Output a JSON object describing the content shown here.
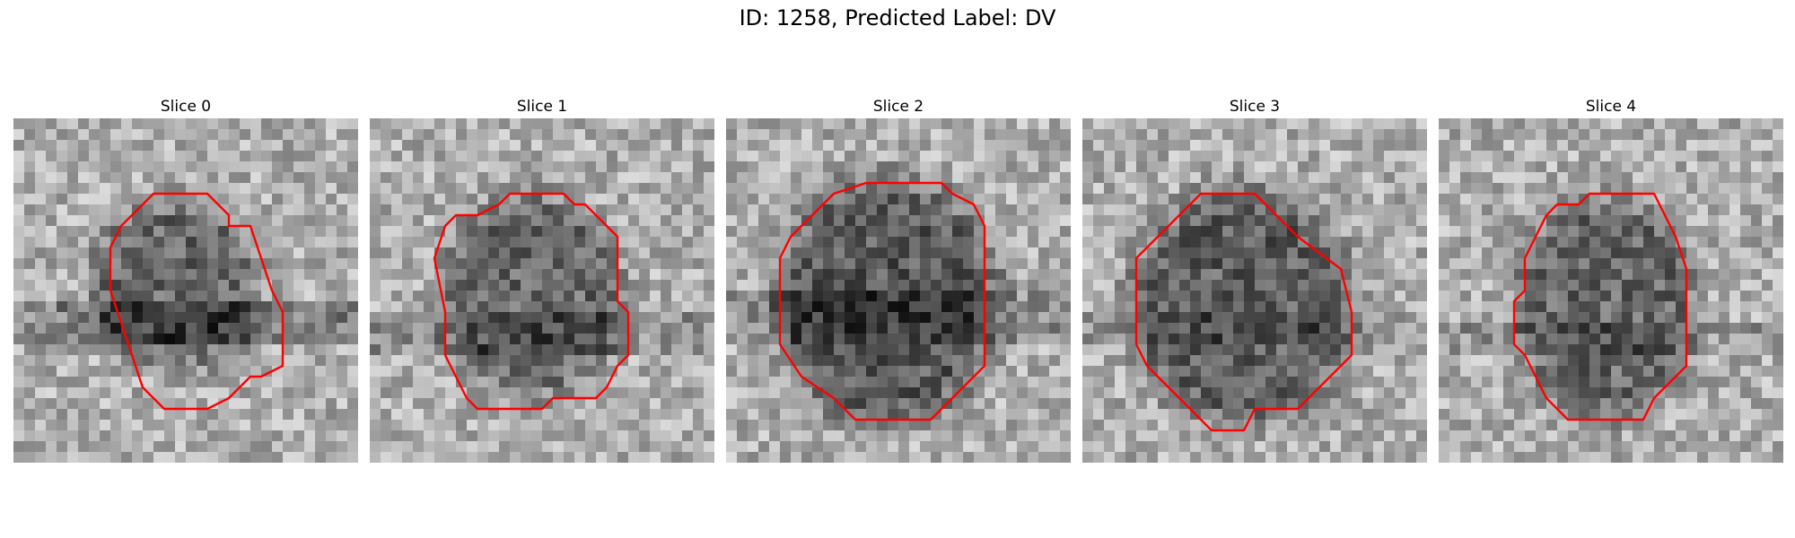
{
  "figure": {
    "title": "ID: 1258, Predicted Label: DV"
  },
  "panels": [
    {
      "title": "Slice 0",
      "contour": [
        [
          16,
          7
        ],
        [
          18,
          7
        ],
        [
          20,
          9
        ],
        [
          20,
          10
        ],
        [
          22,
          10
        ],
        [
          23,
          13
        ],
        [
          24,
          16
        ],
        [
          25,
          18
        ],
        [
          25,
          23
        ],
        [
          23,
          24
        ],
        [
          22,
          24
        ],
        [
          20,
          26
        ],
        [
          18,
          27
        ],
        [
          14,
          27
        ],
        [
          13,
          26
        ],
        [
          12,
          25
        ],
        [
          11,
          22
        ],
        [
          10,
          19
        ],
        [
          9,
          16
        ],
        [
          9,
          12
        ],
        [
          10,
          10
        ],
        [
          11,
          9
        ],
        [
          13,
          7
        ]
      ],
      "blob": {
        "cx": 15,
        "cy": 15.5,
        "rx": 7.5,
        "ry": 7.5,
        "dark": 70
      },
      "band": {
        "y": 17,
        "h": 4,
        "dark": 60
      },
      "seed": 11
    },
    {
      "title": "Slice 1",
      "contour": [
        [
          12,
          8
        ],
        [
          13,
          7
        ],
        [
          18,
          7
        ],
        [
          19,
          8
        ],
        [
          20,
          8
        ],
        [
          23,
          11
        ],
        [
          23,
          17
        ],
        [
          24,
          18
        ],
        [
          24,
          22
        ],
        [
          23,
          23
        ],
        [
          22,
          25
        ],
        [
          21,
          26
        ],
        [
          17,
          26
        ],
        [
          16,
          27
        ],
        [
          10,
          27
        ],
        [
          9,
          26
        ],
        [
          8,
          24
        ],
        [
          7,
          22
        ],
        [
          7,
          18
        ],
        [
          6,
          13
        ],
        [
          7,
          10
        ],
        [
          8,
          9
        ],
        [
          10,
          9
        ]
      ],
      "blob": {
        "cx": 15,
        "cy": 16.5,
        "rx": 8,
        "ry": 9,
        "dark": 70
      },
      "band": {
        "y": 18,
        "h": 4,
        "dark": 40
      },
      "seed": 23
    },
    {
      "title": "Slice 2",
      "contour": [
        [
          13,
          6
        ],
        [
          20,
          6
        ],
        [
          21,
          7
        ],
        [
          23,
          8
        ],
        [
          24,
          10
        ],
        [
          24,
          19
        ],
        [
          24,
          23
        ],
        [
          22,
          25
        ],
        [
          20,
          27
        ],
        [
          19,
          28
        ],
        [
          12,
          28
        ],
        [
          11,
          27
        ],
        [
          10,
          26
        ],
        [
          7,
          24
        ],
        [
          5,
          21
        ],
        [
          5,
          13
        ],
        [
          6,
          11
        ],
        [
          8,
          9
        ],
        [
          10,
          7
        ]
      ],
      "blob": {
        "cx": 15,
        "cy": 17,
        "rx": 10,
        "ry": 11,
        "dark": 85
      },
      "band": {
        "y": 16,
        "h": 5,
        "dark": 40
      },
      "seed": 37
    },
    {
      "title": "Slice 3",
      "contour": [
        [
          11,
          7
        ],
        [
          16,
          7
        ],
        [
          17,
          8
        ],
        [
          20,
          11
        ],
        [
          24,
          14
        ],
        [
          25,
          18
        ],
        [
          25,
          22
        ],
        [
          24,
          23
        ],
        [
          23,
          24
        ],
        [
          21,
          26
        ],
        [
          20,
          27
        ],
        [
          16,
          27
        ],
        [
          15,
          29
        ],
        [
          12,
          29
        ],
        [
          10,
          27
        ],
        [
          8,
          25
        ],
        [
          6,
          23
        ],
        [
          5,
          21
        ],
        [
          5,
          13
        ],
        [
          7,
          11
        ],
        [
          10,
          8
        ]
      ],
      "blob": {
        "cx": 15,
        "cy": 17.5,
        "rx": 10,
        "ry": 10.5,
        "dark": 80
      },
      "band": {
        "y": 18,
        "h": 3,
        "dark": 30
      },
      "seed": 51
    },
    {
      "title": "Slice 4",
      "contour": [
        [
          11,
          8
        ],
        [
          13,
          8
        ],
        [
          14,
          7
        ],
        [
          20,
          7
        ],
        [
          21,
          9
        ],
        [
          22,
          11
        ],
        [
          23,
          14
        ],
        [
          23,
          23
        ],
        [
          21,
          25
        ],
        [
          20,
          26
        ],
        [
          19,
          28
        ],
        [
          12,
          28
        ],
        [
          11,
          27
        ],
        [
          10,
          26
        ],
        [
          9,
          24
        ],
        [
          8,
          22
        ],
        [
          7,
          21
        ],
        [
          7,
          17
        ],
        [
          8,
          16
        ],
        [
          8,
          13
        ],
        [
          9,
          11
        ],
        [
          10,
          9
        ]
      ],
      "blob": {
        "cx": 15.5,
        "cy": 17.5,
        "rx": 8,
        "ry": 10,
        "dark": 70
      },
      "band": {
        "y": 19,
        "h": 3,
        "dark": 30
      },
      "seed": 67
    }
  ]
}
